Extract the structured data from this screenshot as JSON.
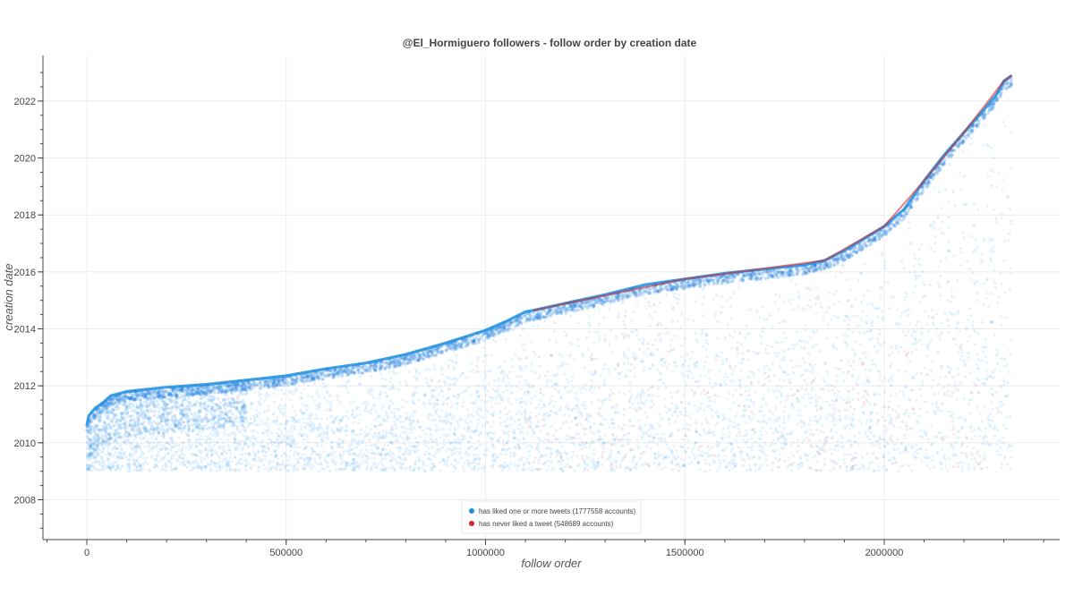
{
  "chart_data": {
    "type": "scatter",
    "title": "@El_Hormiguero followers - follow order by creation date",
    "xlabel": "follow order",
    "ylabel": "creation date",
    "xlim": [
      -110000,
      2440000
    ],
    "ylim": [
      2006.6,
      2023.6
    ],
    "grid": true,
    "x_ticks": [
      {
        "value": 0,
        "label": "0"
      },
      {
        "value": 500000,
        "label": "500000"
      },
      {
        "value": 1000000,
        "label": "1000000"
      },
      {
        "value": 1500000,
        "label": "1500000"
      },
      {
        "value": 2000000,
        "label": "2000000"
      }
    ],
    "y_ticks": [
      {
        "value": 2008,
        "label": "2008"
      },
      {
        "value": 2010,
        "label": "2010"
      },
      {
        "value": 2012,
        "label": "2012"
      },
      {
        "value": 2014,
        "label": "2014"
      },
      {
        "value": 2016,
        "label": "2016"
      },
      {
        "value": 2018,
        "label": "2018"
      },
      {
        "value": 2020,
        "label": "2020"
      },
      {
        "value": 2022,
        "label": "2022"
      }
    ],
    "legend": {
      "placement": "bottom-center",
      "entries": [
        {
          "label": "has liked one or more tweets (1777558 accounts)",
          "color": "#1f8fe0"
        },
        {
          "label": "has never liked a tweet (548689 accounts)",
          "color": "#d62728"
        }
      ]
    },
    "series": [
      {
        "name": "has liked one or more tweets (1777558 accounts)",
        "color": "#1f8fe0",
        "envelope_x": [
          0,
          5000,
          20000,
          40000,
          60000,
          100000,
          200000,
          300000,
          400000,
          500000,
          600000,
          700000,
          800000,
          900000,
          1000000,
          1050000,
          1100000,
          1120000,
          1200000,
          1300000,
          1400000,
          1500000,
          1600000,
          1700000,
          1800000,
          1850000,
          1900000,
          2000000,
          2050000,
          2100000,
          2150000,
          2200000,
          2250000,
          2280000,
          2300000,
          2320000
        ],
        "envelope_y": [
          2010.6,
          2010.95,
          2011.2,
          2011.4,
          2011.65,
          2011.8,
          2011.95,
          2012.05,
          2012.2,
          2012.35,
          2012.6,
          2012.8,
          2013.1,
          2013.5,
          2013.95,
          2014.25,
          2014.6,
          2014.65,
          2014.9,
          2015.2,
          2015.55,
          2015.75,
          2015.95,
          2016.1,
          2016.25,
          2016.4,
          2016.75,
          2017.6,
          2018.2,
          2019.2,
          2020.1,
          2020.9,
          2021.7,
          2022.2,
          2022.7,
          2022.9
        ],
        "spread_floor": 2009.0
      },
      {
        "name": "has never liked a tweet (548689 accounts)",
        "color": "#d62728",
        "envelope_x": [
          1120000,
          1500000,
          1850000,
          2000000,
          2100000,
          2200000,
          2300000,
          2320000
        ],
        "envelope_y": [
          2014.65,
          2015.75,
          2016.4,
          2017.6,
          2019.2,
          2020.9,
          2022.7,
          2022.9
        ]
      }
    ]
  }
}
